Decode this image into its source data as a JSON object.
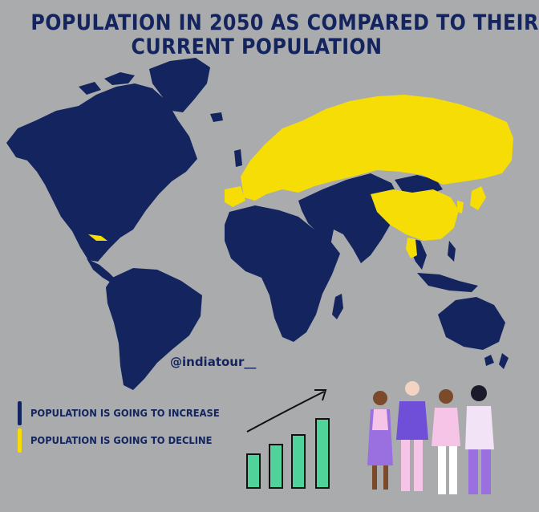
{
  "title_line1": "POPULATION IN 2050 AS COMPARED TO THEIR",
  "title_line2": "CURRENT POPULATION",
  "handle": "@indiatour__",
  "legend": {
    "increase": {
      "label": "POPULATION IS GOING TO INCREASE",
      "color": "#13245e"
    },
    "decline": {
      "label": "POPULATION IS GOING TO DECLINE",
      "color": "#f5dd05"
    }
  },
  "colors": {
    "background": "#a9abad",
    "increase": "#13245e",
    "decline": "#f5dd05",
    "bar_fill": "#4fd39a"
  },
  "decline_regions": [
    "Russia",
    "Europe",
    "China",
    "Japan",
    "Korea",
    "Thailand",
    "Cuba"
  ],
  "increase_regions": [
    "North America",
    "South America",
    "Africa",
    "Middle East",
    "Central Asia",
    "South Asia",
    "Southeast Asia",
    "Australia",
    "Mongolia"
  ],
  "icons": [
    "growth-chart-icon",
    "people-illustration"
  ]
}
